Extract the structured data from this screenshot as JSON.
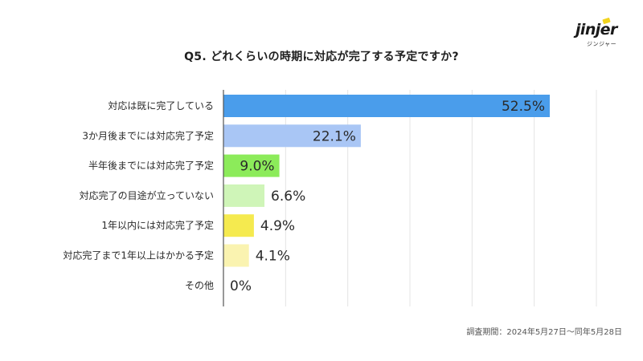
{
  "title": "Q5. どれくらいの時期に対応が完了する予定ですか?",
  "logo": {
    "wordmark": "jinjer",
    "subtext": "ジンジャー",
    "accent_color": "#F2D41E"
  },
  "footer_note": "調査期間：2024年5月27日〜同年5月28日",
  "chart_data": {
    "type": "bar",
    "orientation": "horizontal",
    "title": "Q5. どれくらいの時期に対応が完了する予定ですか?",
    "categories": [
      "対応は既に完了している",
      "3か月後までには対応完了予定",
      "半年後までには対応完了予定",
      "対応完了の目途が立っていない",
      "1年以内には対応完了予定",
      "対応完了まで1年以上はかかる予定",
      "その他"
    ],
    "values": [
      52.5,
      22.1,
      9.0,
      6.6,
      4.9,
      4.1,
      0
    ],
    "value_labels": [
      "52.5%",
      "22.1%",
      "9.0%",
      "6.6%",
      "4.9%",
      "4.1%",
      "0%"
    ],
    "colors": [
      "#4A9DEB",
      "#A9C6F5",
      "#8CEB5A",
      "#CFF5B8",
      "#F5EA4F",
      "#FAF3B0",
      "#FFFFFF"
    ],
    "xlim": [
      0,
      60
    ],
    "grid": true,
    "label_inside": [
      true,
      true,
      true,
      false,
      false,
      false,
      false
    ]
  }
}
